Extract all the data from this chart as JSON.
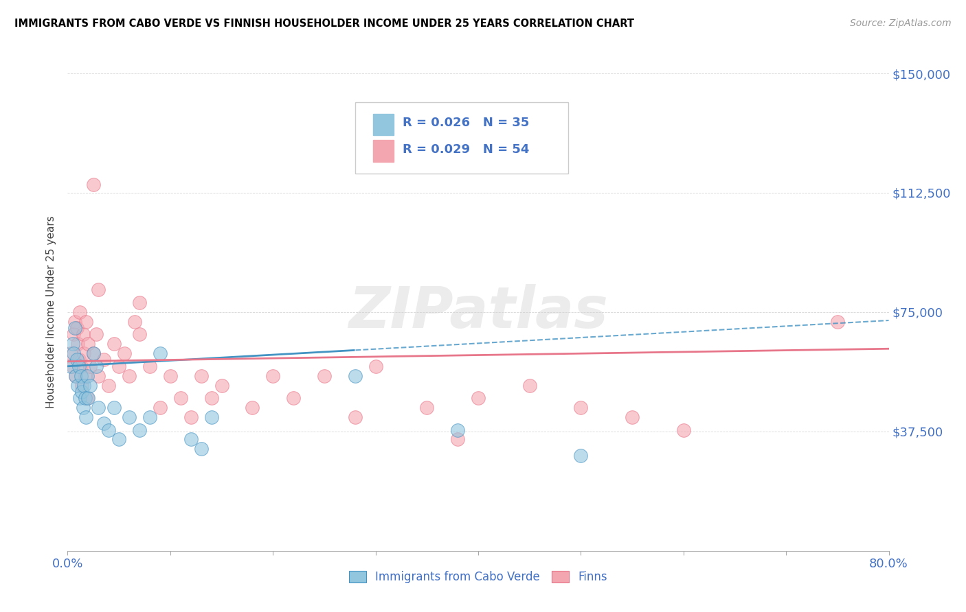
{
  "title": "IMMIGRANTS FROM CABO VERDE VS FINNISH HOUSEHOLDER INCOME UNDER 25 YEARS CORRELATION CHART",
  "source": "Source: ZipAtlas.com",
  "ylabel": "Householder Income Under 25 years",
  "watermark": "ZIPatlas",
  "legend1_label": "R = 0.026   N = 35",
  "legend2_label": "R = 0.029   N = 54",
  "series1_name": "Immigrants from Cabo Verde",
  "series2_name": "Finns",
  "series1_color": "#92c5de",
  "series2_color": "#f4a6b0",
  "series1_line_color": "#4393c3",
  "series2_line_color": "#e8768a",
  "label_color": "#4472C4",
  "xmin": 0.0,
  "xmax": 0.8,
  "ymin": 0,
  "ymax": 150000,
  "yticks": [
    0,
    37500,
    75000,
    112500,
    150000
  ],
  "ytick_labels": [
    "",
    "$37,500",
    "$75,000",
    "$112,500",
    "$150,000"
  ],
  "N1": 35,
  "N2": 54,
  "series1_x": [
    0.003,
    0.005,
    0.006,
    0.007,
    0.008,
    0.009,
    0.01,
    0.011,
    0.012,
    0.013,
    0.014,
    0.015,
    0.016,
    0.017,
    0.018,
    0.019,
    0.02,
    0.022,
    0.025,
    0.028,
    0.03,
    0.035,
    0.04,
    0.045,
    0.05,
    0.06,
    0.07,
    0.08,
    0.09,
    0.12,
    0.13,
    0.14,
    0.28,
    0.38,
    0.5
  ],
  "series1_y": [
    58000,
    65000,
    62000,
    70000,
    55000,
    60000,
    52000,
    58000,
    48000,
    55000,
    50000,
    45000,
    52000,
    48000,
    42000,
    55000,
    48000,
    52000,
    62000,
    58000,
    45000,
    40000,
    38000,
    45000,
    35000,
    42000,
    38000,
    42000,
    62000,
    35000,
    32000,
    42000,
    55000,
    38000,
    30000
  ],
  "series2_x": [
    0.003,
    0.005,
    0.006,
    0.007,
    0.008,
    0.009,
    0.01,
    0.011,
    0.012,
    0.013,
    0.014,
    0.015,
    0.016,
    0.017,
    0.018,
    0.019,
    0.02,
    0.022,
    0.025,
    0.028,
    0.03,
    0.035,
    0.04,
    0.045,
    0.05,
    0.055,
    0.06,
    0.065,
    0.07,
    0.08,
    0.09,
    0.1,
    0.11,
    0.12,
    0.13,
    0.14,
    0.15,
    0.18,
    0.2,
    0.22,
    0.25,
    0.28,
    0.3,
    0.35,
    0.38,
    0.4,
    0.45,
    0.5,
    0.55,
    0.6,
    0.025,
    0.03,
    0.07,
    0.75
  ],
  "series2_y": [
    62000,
    58000,
    68000,
    72000,
    55000,
    70000,
    65000,
    60000,
    75000,
    58000,
    52000,
    68000,
    62000,
    55000,
    72000,
    48000,
    65000,
    58000,
    62000,
    68000,
    55000,
    60000,
    52000,
    65000,
    58000,
    62000,
    55000,
    72000,
    68000,
    58000,
    45000,
    55000,
    48000,
    42000,
    55000,
    48000,
    52000,
    45000,
    55000,
    48000,
    55000,
    42000,
    58000,
    45000,
    35000,
    48000,
    52000,
    45000,
    42000,
    38000,
    115000,
    82000,
    78000,
    72000
  ]
}
